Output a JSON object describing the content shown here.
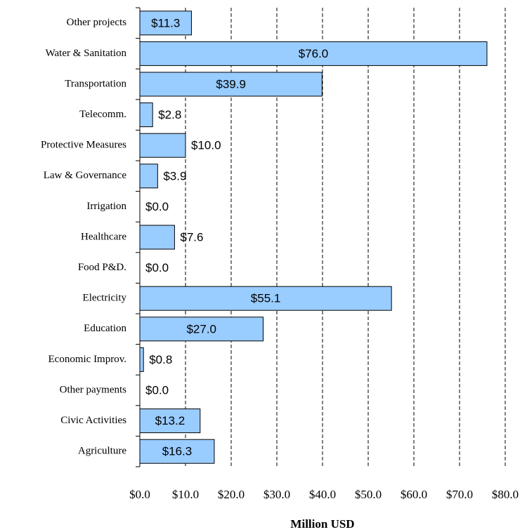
{
  "chart_data": {
    "type": "bar",
    "orientation": "horizontal",
    "x_label": "Million USD",
    "categories": [
      "Other projects",
      "Water & Sanitation",
      "Transportation",
      "Telecomm.",
      "Protective Measures",
      "Law & Governance",
      "Irrigation",
      "Healthcare",
      "Food P&D.",
      "Electricity",
      "Education",
      "Economic Improv.",
      "Other payments",
      "Civic Activities",
      "Agriculture"
    ],
    "values": [
      11.3,
      76.0,
      39.9,
      2.8,
      10.0,
      3.9,
      0.0,
      7.6,
      0.0,
      55.1,
      27.0,
      0.8,
      0.0,
      13.2,
      16.3
    ],
    "value_labels": [
      "$11.3",
      "$76.0",
      "$39.9",
      "$2.8",
      "$10.0",
      "$3.9",
      "$0.0",
      "$7.6",
      "$0.0",
      "$55.1",
      "$27.0",
      "$0.8",
      "$0.0",
      "$13.2",
      "$16.3"
    ],
    "color": "#99ccff",
    "xlim": [
      0,
      80
    ],
    "xticks": [
      {
        "value": 0,
        "label": "$0.0"
      },
      {
        "value": 10,
        "label": "$10.0"
      },
      {
        "value": 20,
        "label": "$20.0"
      },
      {
        "value": 30,
        "label": "$30.0"
      },
      {
        "value": 40,
        "label": "$40.0"
      },
      {
        "value": 50,
        "label": "$50.0"
      },
      {
        "value": 60,
        "label": "$60.0"
      },
      {
        "value": 70,
        "label": "$70.0"
      },
      {
        "value": 80,
        "label": "$80.0"
      }
    ],
    "grid": true
  }
}
